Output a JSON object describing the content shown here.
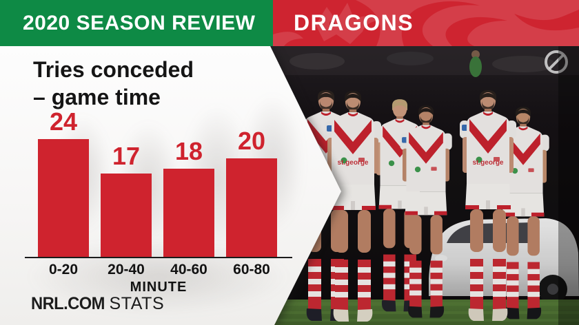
{
  "header": {
    "season_label": "2020 SEASON REVIEW",
    "team_label": "DRAGONS",
    "green_bg": "#0e8a45",
    "red_bg": "#ce2430"
  },
  "panel": {
    "title_line1": "Tries conceded",
    "title_line2": "– game time"
  },
  "chart_data": {
    "type": "bar",
    "title": "Tries conceded – game time",
    "categories": [
      "0-20",
      "20-40",
      "40-60",
      "60-80"
    ],
    "values": [
      24,
      17,
      18,
      20
    ],
    "xlabel": "MINUTE",
    "ylabel": "",
    "ylim": [
      0,
      26
    ],
    "grid": false,
    "legend": "none",
    "bar_color": "#cf232e",
    "value_label_color": "#cf232e",
    "axis_color": "#1b1b1b"
  },
  "footer": {
    "brand_bold": "NRL.COM",
    "brand_light": "STATS"
  },
  "photo": {
    "jersey_sponsor": "st.george"
  }
}
